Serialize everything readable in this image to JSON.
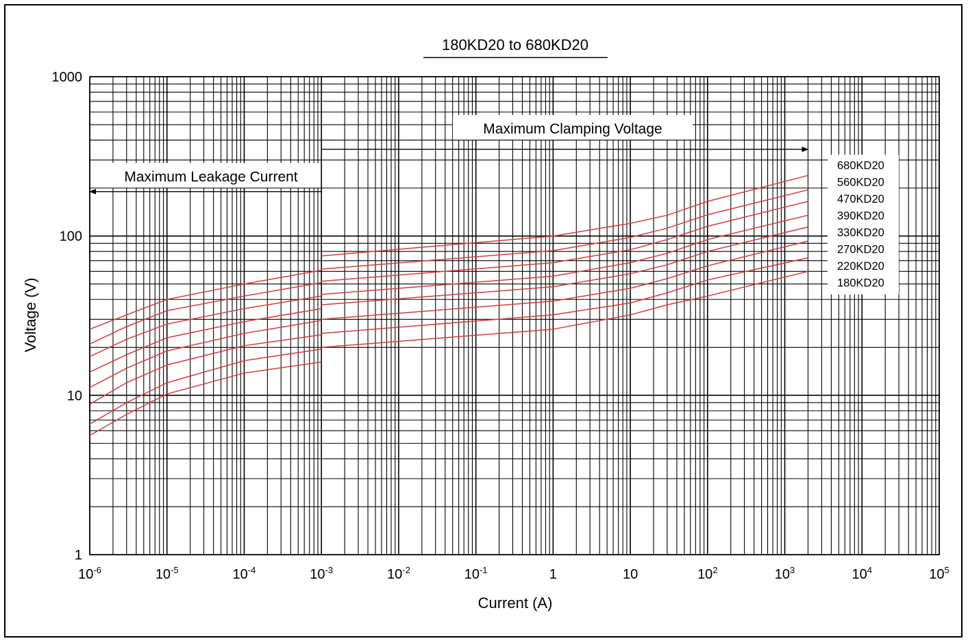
{
  "chart_data": {
    "type": "line",
    "title": "180KD20 to 680KD20",
    "xlabel": "Current (A)",
    "ylabel": "Voltage (V)",
    "x_scale": "log",
    "y_scale": "log",
    "xlim": [
      1e-06,
      100000
    ],
    "ylim": [
      1,
      1000
    ],
    "x_ticks": [
      {
        "value": 1e-06,
        "base": "10",
        "exp": "-6"
      },
      {
        "value": 1e-05,
        "base": "10",
        "exp": "-5"
      },
      {
        "value": 0.0001,
        "base": "10",
        "exp": "-4"
      },
      {
        "value": 0.001,
        "base": "10",
        "exp": "-3"
      },
      {
        "value": 0.01,
        "base": "10",
        "exp": "-2"
      },
      {
        "value": 0.1,
        "base": "10",
        "exp": "-1"
      },
      {
        "value": 1,
        "base": "1",
        "exp": ""
      },
      {
        "value": 10,
        "base": "10",
        "exp": ""
      },
      {
        "value": 100,
        "base": "10",
        "exp": "2"
      },
      {
        "value": 1000,
        "base": "10",
        "exp": "3"
      },
      {
        "value": 10000,
        "base": "10",
        "exp": "4"
      },
      {
        "value": 100000,
        "base": "10",
        "exp": "5"
      }
    ],
    "y_ticks": [
      {
        "value": 1,
        "label": "1"
      },
      {
        "value": 10,
        "label": "10"
      },
      {
        "value": 100,
        "label": "100"
      },
      {
        "value": 1000,
        "label": "1000"
      }
    ],
    "grid": true,
    "legend_position": "right",
    "series_color": "#d23c3c",
    "annotations": [
      {
        "text": "Maximum Clamping Voltage",
        "arrow_from": 0.001,
        "arrow_to": 2000,
        "arrow_y": 350
      },
      {
        "text": "Maximum Leakage Current",
        "arrow_from": 0.001,
        "arrow_to": 1e-06,
        "arrow_y": 190
      }
    ],
    "series": [
      {
        "name": "680KD20",
        "leakage": [
          [
            1e-06,
            26
          ],
          [
            3e-06,
            32
          ],
          [
            1e-05,
            40
          ],
          [
            0.0001,
            50
          ],
          [
            0.001,
            61
          ]
        ],
        "clamping": [
          [
            0.001,
            75
          ],
          [
            1,
            100
          ],
          [
            10,
            120
          ],
          [
            30,
            135
          ],
          [
            100,
            165
          ],
          [
            2000,
            240
          ]
        ]
      },
      {
        "name": "560KD20",
        "leakage": [
          [
            1e-06,
            21
          ],
          [
            3e-06,
            27
          ],
          [
            1e-05,
            34
          ],
          [
            0.0001,
            42
          ],
          [
            0.001,
            51
          ]
        ],
        "clamping": [
          [
            0.001,
            62
          ],
          [
            1,
            81
          ],
          [
            10,
            98
          ],
          [
            30,
            112
          ],
          [
            100,
            136
          ],
          [
            2000,
            195
          ]
        ]
      },
      {
        "name": "470KD20",
        "leakage": [
          [
            1e-06,
            17.5
          ],
          [
            3e-06,
            22.5
          ],
          [
            1e-05,
            28
          ],
          [
            0.0001,
            35
          ],
          [
            0.001,
            42
          ]
        ],
        "clamping": [
          [
            0.001,
            52
          ],
          [
            1,
            68
          ],
          [
            10,
            82
          ],
          [
            30,
            95
          ],
          [
            100,
            115
          ],
          [
            2000,
            165
          ]
        ]
      },
      {
        "name": "390KD20",
        "leakage": [
          [
            1e-06,
            14
          ],
          [
            3e-06,
            18
          ],
          [
            1e-05,
            23
          ],
          [
            0.0001,
            29
          ],
          [
            0.001,
            35
          ]
        ],
        "clamping": [
          [
            0.001,
            43
          ],
          [
            1,
            56
          ],
          [
            10,
            68
          ],
          [
            30,
            78
          ],
          [
            100,
            95
          ],
          [
            2000,
            135
          ]
        ]
      },
      {
        "name": "330KD20",
        "leakage": [
          [
            1e-06,
            11.2
          ],
          [
            3e-06,
            14.8
          ],
          [
            1e-05,
            19
          ],
          [
            0.0001,
            24.5
          ],
          [
            0.001,
            29.5
          ]
        ],
        "clamping": [
          [
            0.001,
            37
          ],
          [
            1,
            48
          ],
          [
            10,
            58
          ],
          [
            30,
            66
          ],
          [
            100,
            80
          ],
          [
            2000,
            114
          ]
        ]
      },
      {
        "name": "270KD20",
        "leakage": [
          [
            1e-06,
            8.8
          ],
          [
            3e-06,
            12
          ],
          [
            1e-05,
            15.5
          ],
          [
            0.0001,
            20.5
          ],
          [
            0.001,
            24
          ]
        ],
        "clamping": [
          [
            0.001,
            30
          ],
          [
            1,
            39
          ],
          [
            10,
            47
          ],
          [
            30,
            54
          ],
          [
            100,
            65
          ],
          [
            2000,
            93
          ]
        ]
      },
      {
        "name": "220KD20",
        "leakage": [
          [
            1e-06,
            6.6
          ],
          [
            3e-06,
            9
          ],
          [
            1e-05,
            12
          ],
          [
            0.0001,
            16.5
          ],
          [
            0.001,
            19.5
          ]
        ],
        "clamping": [
          [
            0.001,
            24.5
          ],
          [
            1,
            32
          ],
          [
            10,
            38
          ],
          [
            30,
            44
          ],
          [
            100,
            53
          ],
          [
            2000,
            73
          ]
        ]
      },
      {
        "name": "180KD20",
        "leakage": [
          [
            1e-06,
            5.6
          ],
          [
            3e-06,
            7.6
          ],
          [
            1e-05,
            10.2
          ],
          [
            0.0001,
            13.8
          ],
          [
            0.001,
            16.2
          ]
        ],
        "clamping": [
          [
            0.001,
            20
          ],
          [
            1,
            26
          ],
          [
            10,
            32
          ],
          [
            30,
            37
          ],
          [
            100,
            42
          ],
          [
            2000,
            60
          ]
        ]
      }
    ]
  }
}
